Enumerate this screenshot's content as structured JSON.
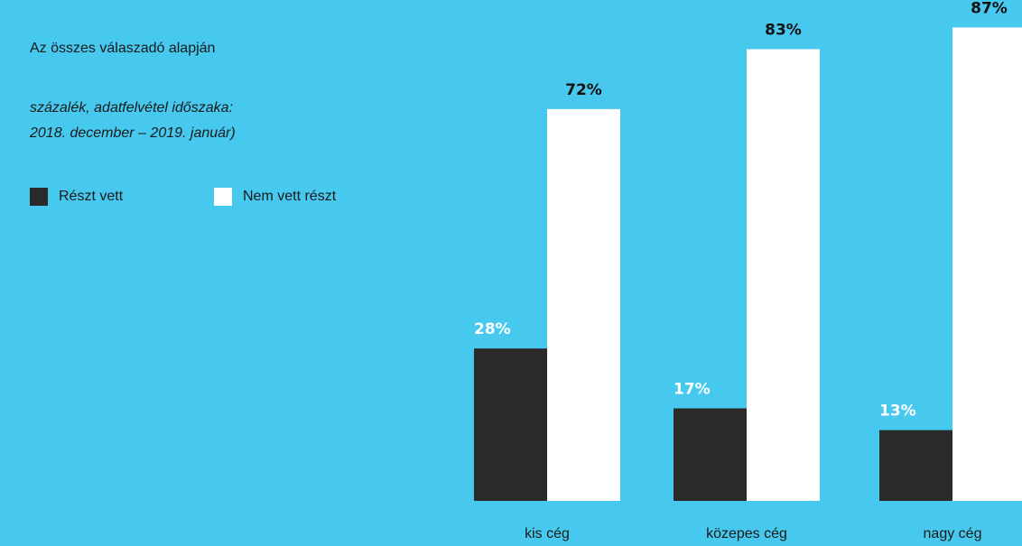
{
  "subtitle": "Az összes válaszadó alapján",
  "note": {
    "line1": "százalék, adatfelvétel időszaka:",
    "line2": "2018. december – 2019. január)"
  },
  "colors": {
    "background": "#47c8ee",
    "reszt_vett": "#2a2a2a",
    "nem_vett_reszt": "#ffffff"
  },
  "chart_data": {
    "type": "bar",
    "categories": [
      "kis cég",
      "közepes cég",
      "nagy cég"
    ],
    "series": [
      {
        "name": "Részt vett",
        "values": [
          28,
          17,
          13
        ],
        "labels": [
          "28%",
          "17%",
          "13%"
        ]
      },
      {
        "name": "Nem vett részt",
        "values": [
          72,
          83,
          87
        ],
        "labels": [
          "72%",
          "83%",
          "87%"
        ]
      }
    ],
    "ylim": [
      0,
      100
    ],
    "unit": "%",
    "grid": false,
    "legend": "top-left"
  }
}
